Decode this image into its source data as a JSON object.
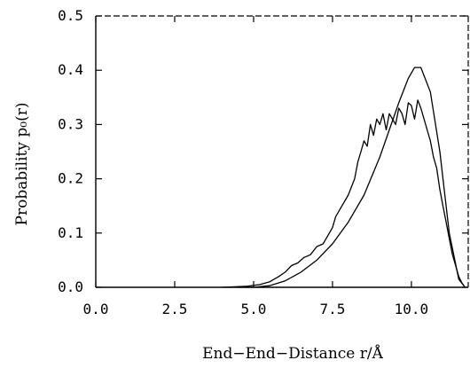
{
  "chart_data": {
    "type": "line",
    "title": "",
    "xlabel": "End−End−Distance r/Å",
    "ylabel": "Probability p₀(r)",
    "xlim": [
      0.0,
      11.8
    ],
    "ylim": [
      0.0,
      0.5
    ],
    "x_ticks": [
      "0.0",
      "2.5",
      "5.0",
      "7.5",
      "10.0"
    ],
    "y_ticks": [
      "0.0",
      "0.1",
      "0.2",
      "0.3",
      "0.4",
      "0.5"
    ],
    "x_tick_values": [
      0.0,
      2.5,
      5.0,
      7.5,
      10.0
    ],
    "y_tick_values": [
      0.0,
      0.1,
      0.2,
      0.3,
      0.4,
      0.5
    ],
    "grid": false,
    "legend": "none",
    "series": [
      {
        "style": "smooth",
        "x": [
          4.5,
          5.0,
          5.5,
          6.0,
          6.5,
          7.0,
          7.5,
          8.0,
          8.5,
          9.0,
          9.3,
          9.6,
          9.9,
          10.1,
          10.3,
          10.6,
          10.9,
          11.2,
          11.5,
          11.7
        ],
        "y": [
          0.0,
          0.0,
          0.003,
          0.012,
          0.028,
          0.05,
          0.08,
          0.12,
          0.17,
          0.24,
          0.29,
          0.34,
          0.385,
          0.405,
          0.405,
          0.36,
          0.25,
          0.1,
          0.015,
          0.0
        ]
      },
      {
        "style": "noisy",
        "x": [
          4.0,
          4.8,
          5.2,
          5.5,
          5.8,
          6.0,
          6.2,
          6.4,
          6.6,
          6.8,
          7.0,
          7.2,
          7.4,
          7.5,
          7.6,
          7.8,
          8.0,
          8.2,
          8.3,
          8.4,
          8.5,
          8.6,
          8.7,
          8.8,
          8.9,
          9.0,
          9.1,
          9.2,
          9.3,
          9.4,
          9.5,
          9.6,
          9.7,
          9.8,
          9.9,
          10.0,
          10.1,
          10.2,
          10.3,
          10.4,
          10.5,
          10.6,
          10.7,
          10.8,
          10.9,
          11.0,
          11.1,
          11.2,
          11.3,
          11.4,
          11.5,
          11.6,
          11.7
        ],
        "y": [
          0.0,
          0.002,
          0.005,
          0.01,
          0.02,
          0.028,
          0.04,
          0.045,
          0.055,
          0.06,
          0.075,
          0.08,
          0.1,
          0.11,
          0.13,
          0.15,
          0.17,
          0.2,
          0.23,
          0.25,
          0.27,
          0.26,
          0.3,
          0.28,
          0.31,
          0.3,
          0.32,
          0.29,
          0.32,
          0.31,
          0.3,
          0.33,
          0.32,
          0.3,
          0.34,
          0.335,
          0.31,
          0.345,
          0.33,
          0.31,
          0.29,
          0.27,
          0.24,
          0.22,
          0.18,
          0.15,
          0.12,
          0.09,
          0.06,
          0.04,
          0.02,
          0.008,
          0.0
        ]
      }
    ]
  }
}
